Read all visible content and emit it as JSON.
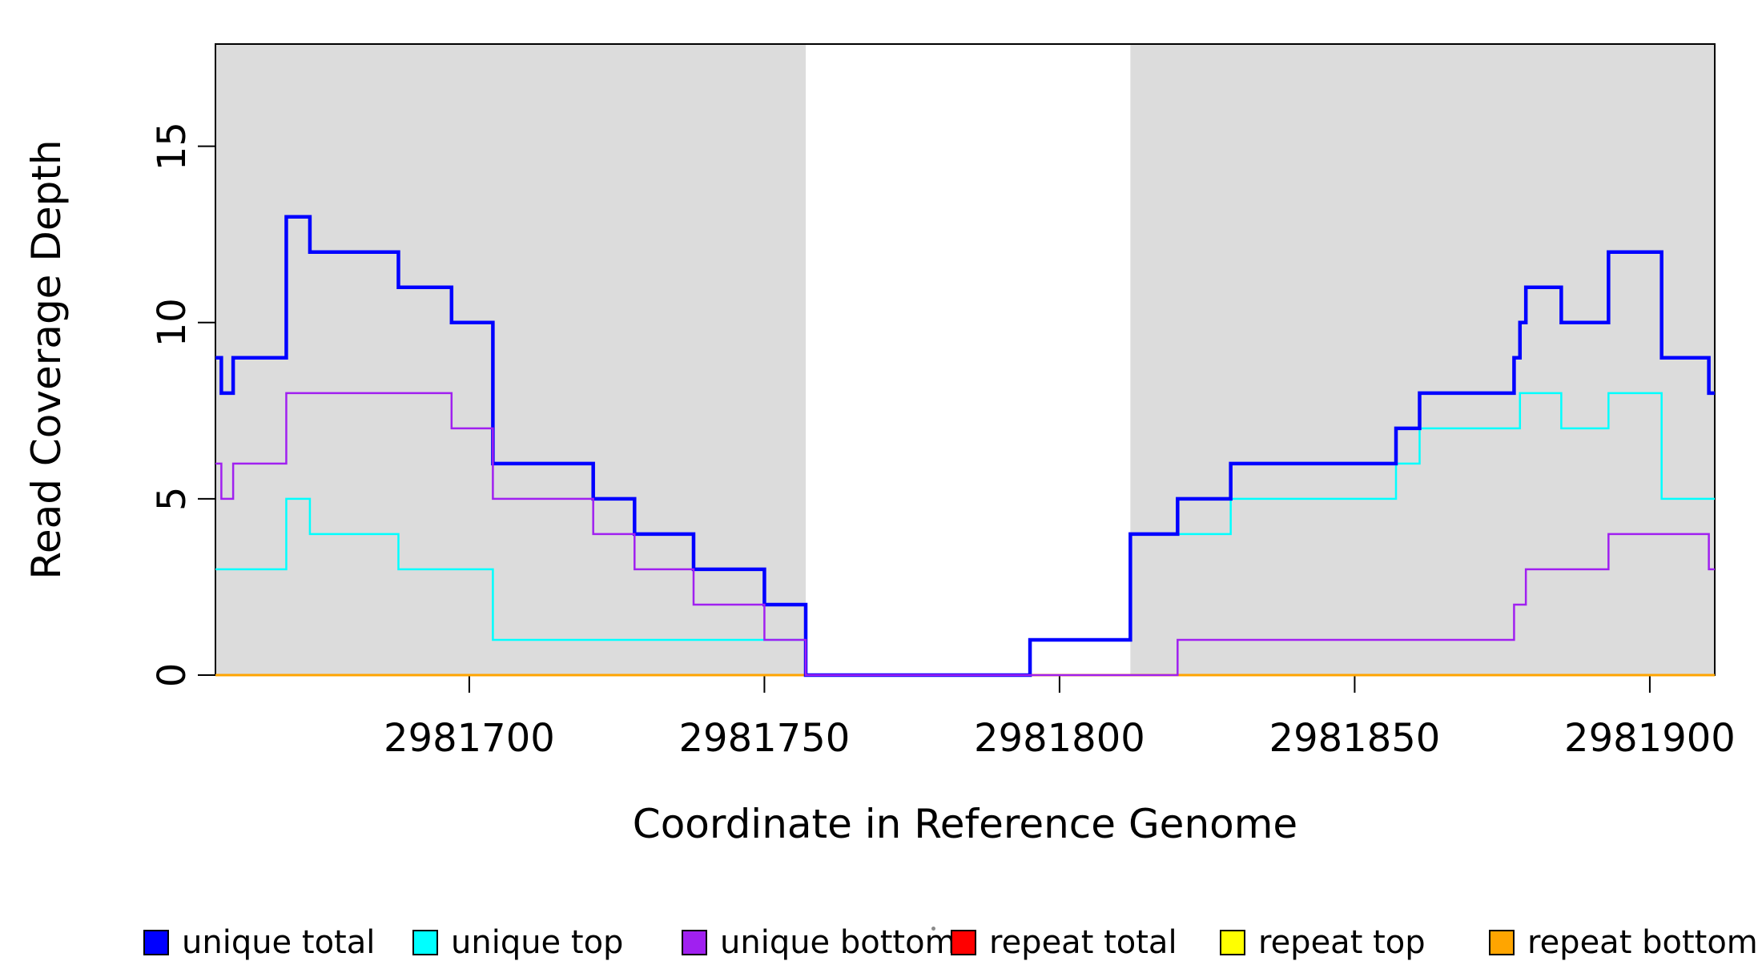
{
  "chart_data": {
    "type": "line",
    "subtype": "step-coverage",
    "title": "",
    "xlabel": "Coordinate in Reference Genome",
    "ylabel": "Read Coverage Depth",
    "xlim": [
      2981657,
      2981911
    ],
    "ylim": [
      0,
      17.9
    ],
    "grid": false,
    "legend_position": "bottom",
    "x_ticks": [
      {
        "value": 2981700,
        "label": "2981700"
      },
      {
        "value": 2981750,
        "label": "2981750"
      },
      {
        "value": 2981800,
        "label": "2981800"
      },
      {
        "value": 2981850,
        "label": "2981850"
      },
      {
        "value": 2981900,
        "label": "2981900"
      }
    ],
    "y_ticks": [
      {
        "value": 0,
        "label": "0"
      },
      {
        "value": 5,
        "label": "5"
      },
      {
        "value": 10,
        "label": "10"
      },
      {
        "value": 15,
        "label": "15"
      }
    ],
    "shaded_regions": [
      {
        "from": 2981657,
        "to": 2981757
      },
      {
        "from": 2981812,
        "to": 2981911
      }
    ],
    "shaded_color": "#DCDCDC",
    "series": [
      {
        "name": "repeat total",
        "color": "#FF0000",
        "line_width": 3,
        "steps": [
          [
            2981657,
            0
          ]
        ]
      },
      {
        "name": "repeat top",
        "color": "#FFFF00",
        "line_width": 3,
        "steps": [
          [
            2981657,
            0
          ]
        ]
      },
      {
        "name": "repeat bottom",
        "color": "#FFA500",
        "line_width": 3,
        "steps": [
          [
            2981657,
            0
          ]
        ]
      },
      {
        "name": "unique top",
        "color": "#00FFFF",
        "line_width": 2.5,
        "steps": [
          [
            2981657,
            3
          ],
          [
            2981669,
            5
          ],
          [
            2981673,
            4
          ],
          [
            2981688,
            3
          ],
          [
            2981704,
            1
          ],
          [
            2981757,
            0
          ],
          [
            2981795,
            1
          ],
          [
            2981812,
            4
          ],
          [
            2981829,
            5
          ],
          [
            2981857,
            6
          ],
          [
            2981861,
            7
          ],
          [
            2981878,
            8
          ],
          [
            2981885,
            7
          ],
          [
            2981893,
            8
          ],
          [
            2981902,
            5
          ]
        ]
      },
      {
        "name": "unique total",
        "color": "#0000FF",
        "line_width": 4.5,
        "steps": [
          [
            2981657,
            9
          ],
          [
            2981658,
            8
          ],
          [
            2981660,
            9
          ],
          [
            2981669,
            13
          ],
          [
            2981673,
            12
          ],
          [
            2981688,
            11
          ],
          [
            2981697,
            10
          ],
          [
            2981704,
            6
          ],
          [
            2981721,
            5
          ],
          [
            2981728,
            4
          ],
          [
            2981738,
            3
          ],
          [
            2981750,
            2
          ],
          [
            2981757,
            0
          ],
          [
            2981795,
            1
          ],
          [
            2981812,
            4
          ],
          [
            2981820,
            5
          ],
          [
            2981829,
            6
          ],
          [
            2981857,
            7
          ],
          [
            2981861,
            8
          ],
          [
            2981877,
            9
          ],
          [
            2981878,
            10
          ],
          [
            2981879,
            11
          ],
          [
            2981885,
            10
          ],
          [
            2981893,
            12
          ],
          [
            2981902,
            9
          ],
          [
            2981910,
            8
          ]
        ]
      },
      {
        "name": "unique bottom",
        "color": "#A020F0",
        "line_width": 2.5,
        "steps": [
          [
            2981657,
            6
          ],
          [
            2981658,
            5
          ],
          [
            2981660,
            6
          ],
          [
            2981669,
            8
          ],
          [
            2981697,
            7
          ],
          [
            2981704,
            5
          ],
          [
            2981721,
            4
          ],
          [
            2981728,
            3
          ],
          [
            2981738,
            2
          ],
          [
            2981750,
            1
          ],
          [
            2981757,
            0
          ],
          [
            2981820,
            1
          ],
          [
            2981877,
            2
          ],
          [
            2981879,
            3
          ],
          [
            2981893,
            4
          ],
          [
            2981910,
            3
          ]
        ]
      }
    ]
  },
  "axes": {
    "x_title": "Coordinate in Reference Genome",
    "y_title": "Read Coverage Depth"
  },
  "legend": {
    "items": [
      {
        "label": "unique total",
        "color": "#0000FF"
      },
      {
        "label": "unique top",
        "color": "#00FFFF"
      },
      {
        "label": "unique bottom",
        "color": "#A020F0"
      },
      {
        "label": "repeat total",
        "color": "#FF0000"
      },
      {
        "label": "repeat top",
        "color": "#FFFF00"
      },
      {
        "label": "repeat bottom",
        "color": "#FFA500"
      }
    ]
  }
}
